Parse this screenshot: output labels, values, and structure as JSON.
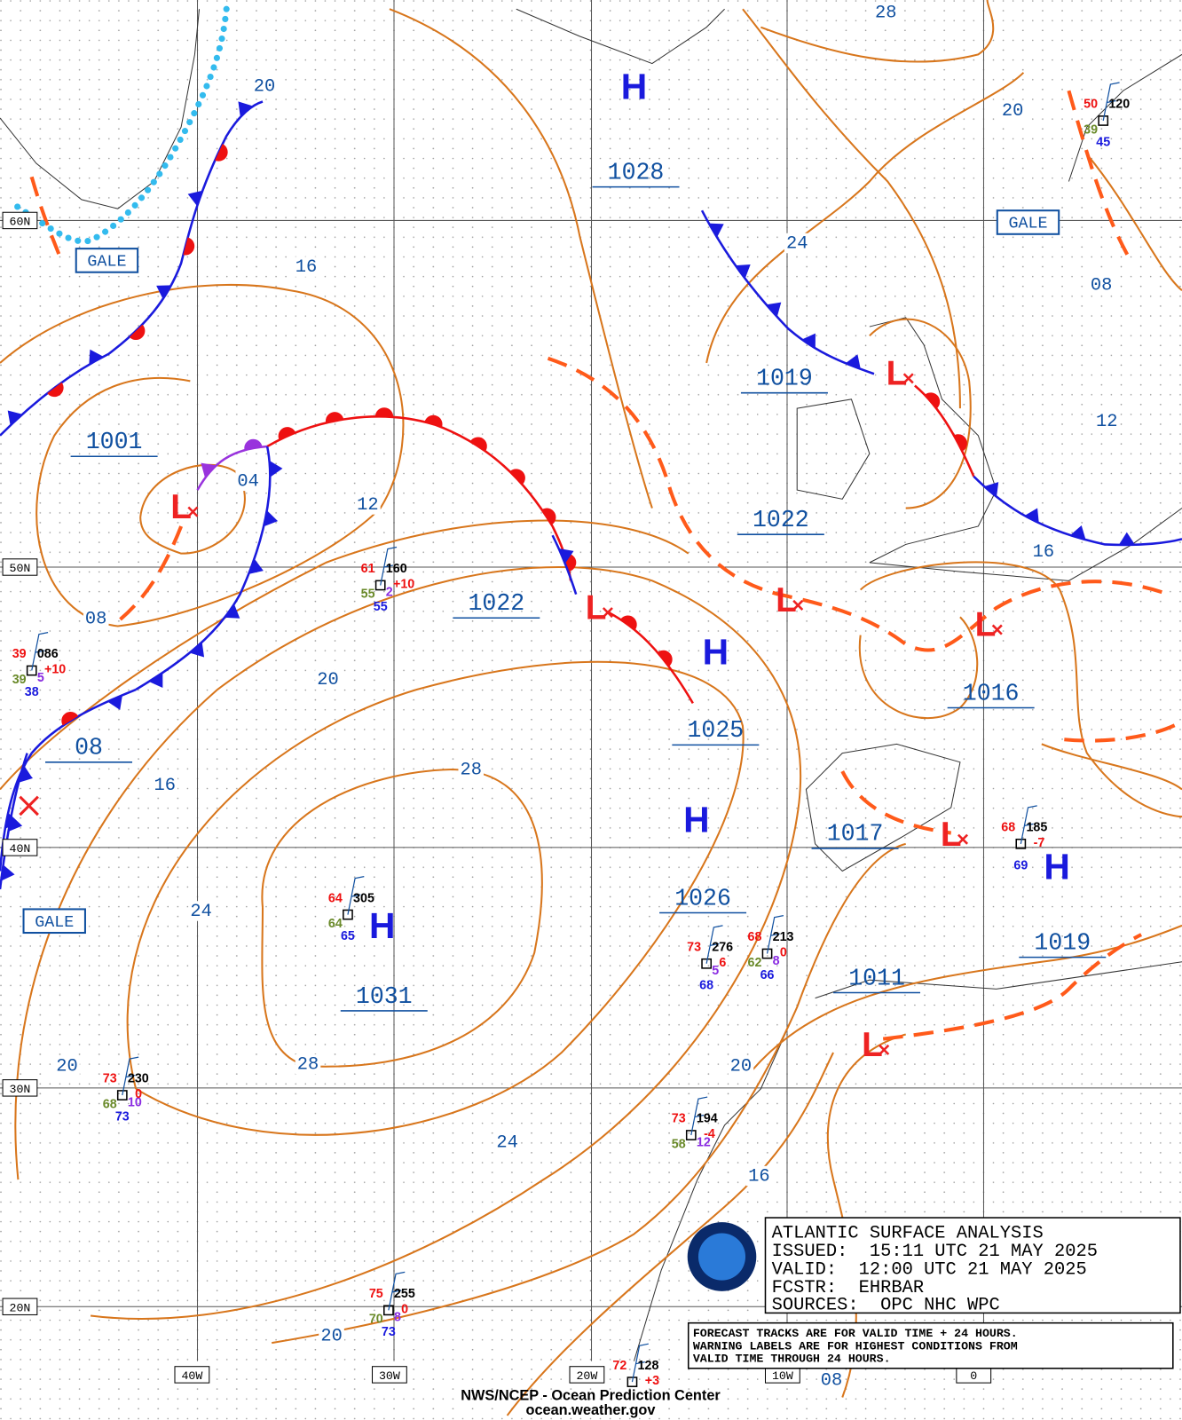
{
  "map": {
    "pressure_labels": [
      "1028",
      "1019",
      "1001",
      "1022",
      "1022",
      "1025",
      "1016",
      "08",
      "1017",
      "1026",
      "1019",
      "1011",
      "1031"
    ],
    "center_symbols": [
      "H",
      "H",
      "H",
      "H",
      "H",
      "L",
      "L",
      "L",
      "L",
      "L",
      "L",
      "L"
    ],
    "isobar_labels": [
      "28",
      "20",
      "20",
      "16",
      "24",
      "08",
      "12",
      "04",
      "12",
      "08",
      "16",
      "20",
      "28",
      "16",
      "24",
      "20",
      "28",
      "20",
      "24",
      "16",
      "20",
      "08"
    ],
    "warnings": [
      "GALE",
      "GALE",
      "GALE"
    ],
    "latitude_labels": [
      "60N",
      "50N",
      "40N",
      "30N",
      "20N"
    ],
    "longitude_labels": [
      "40W",
      "30W",
      "20W",
      "10W",
      "0"
    ],
    "stations": [
      {
        "temp": "61",
        "id": "160",
        "dew": "55",
        "weather": "2",
        "sst": "55",
        "trend": "+10"
      },
      {
        "temp": "39",
        "id": "086",
        "dew": "39",
        "weather": "5",
        "sst": "38",
        "trend": "+10"
      },
      {
        "temp": "64",
        "id": "305",
        "dew": "64",
        "sst": "65"
      },
      {
        "temp": "73",
        "id": "276",
        "weather": "5",
        "sst": "68",
        "trend": "6"
      },
      {
        "temp": "68",
        "id": "213",
        "dew": "62",
        "weather": "8",
        "sst": "66",
        "trend": "0"
      },
      {
        "temp": "73",
        "id": "230",
        "dew": "68",
        "weather": "10",
        "sst": "73",
        "trend": "0"
      },
      {
        "temp": "73",
        "id": "194",
        "dew": "58",
        "weather": "12",
        "trend": "-4"
      },
      {
        "temp": "75",
        "id": "255",
        "dew": "70",
        "weather": "8",
        "sst": "73",
        "trend": "0"
      },
      {
        "temp": "72",
        "id": "128",
        "trend": "+3"
      },
      {
        "temp": "68",
        "id": "185",
        "sst": "69",
        "trend": "-7"
      },
      {
        "temp": "50",
        "id": "120",
        "dew": "39",
        "sst": "45"
      }
    ]
  },
  "info_box": {
    "title": "ATLANTIC SURFACE ANALYSIS",
    "issued": "ISSUED:  15:11 UTC 21 MAY 2025",
    "valid": "VALID:  12:00 UTC 21 MAY 2025",
    "forecaster": "FCSTR:  EHRBAR",
    "sources": "SOURCES:  OPC NHC WPC"
  },
  "notes": [
    "FORECAST TRACKS ARE FOR VALID TIME + 24 HOURS.",
    "WARNING LABELS ARE FOR HIGHEST CONDITIONS FROM",
    "VALID TIME THROUGH 24 HOURS."
  ],
  "footer": {
    "agency": "NWS/NCEP - Ocean Prediction Center",
    "url": "ocean.weather.gov"
  }
}
